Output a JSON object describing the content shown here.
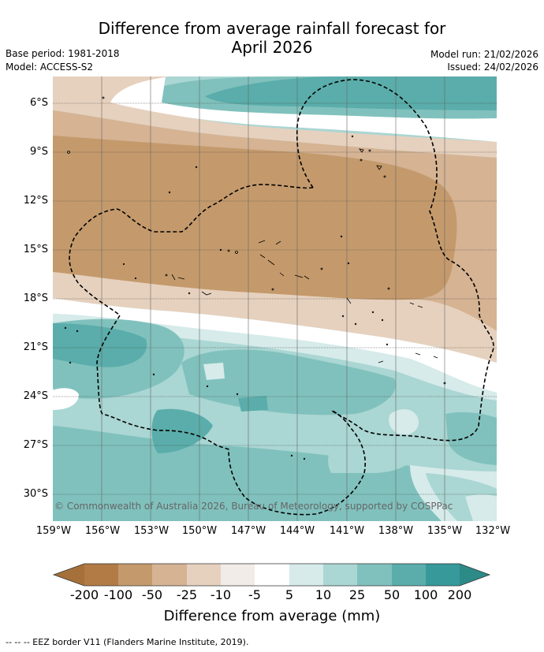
{
  "title": {
    "line1": "Difference from average rainfall forecast for",
    "line2": "April 2026"
  },
  "meta": {
    "base_period": "Base period: 1981-2018",
    "model": "Model: ACCESS-S2",
    "model_run": "Model run: 21/02/2026",
    "issued": "Issued: 24/02/2026"
  },
  "map": {
    "latitude_labels": [
      "6°S",
      "9°S",
      "12°S",
      "15°S",
      "18°S",
      "21°S",
      "24°S",
      "27°S",
      "30°S"
    ],
    "longitude_labels": [
      "159°W",
      "156°W",
      "153°W",
      "150°W",
      "147°W",
      "144°W",
      "141°W",
      "138°W",
      "135°W",
      "132°W"
    ],
    "copyright": "© Commonwealth of Australia 2026, Bureau of Meteorology, supported by COSPPac"
  },
  "colorbar": {
    "ticks": [
      "-200",
      "-100",
      "-50",
      "-25",
      "-10",
      "-5",
      "5",
      "10",
      "25",
      "50",
      "100",
      "200"
    ],
    "colors": [
      "#a5703a",
      "#b27a45",
      "#c49a6c",
      "#d5b393",
      "#e6d1be",
      "#f1ece7",
      "#ffffff",
      "#d6ebea",
      "#aad6d3",
      "#80c1bd",
      "#5aadaa",
      "#37999a",
      "#2c8a87"
    ],
    "label": "Difference from average (mm)"
  },
  "footer": "--  --  -- EEZ border V11 (Flanders Marine Institute, 2019)."
}
